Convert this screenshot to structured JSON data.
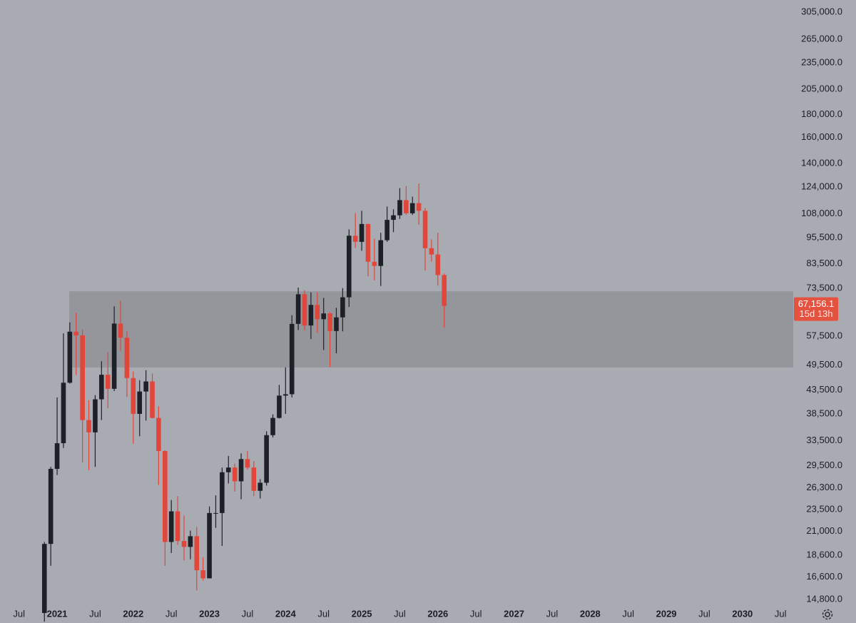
{
  "chart_data": {
    "type": "candlestick",
    "log_scale": true,
    "up_color": "#1e2028",
    "down_color": "#e1463a",
    "background": "#a9abb3",
    "zone": {
      "top": 72400,
      "bottom": 48900,
      "color": "#909298"
    },
    "x": [
      "2020-11",
      "2020-12",
      "2021-01",
      "2021-02",
      "2021-03",
      "2021-04",
      "2021-05",
      "2021-06",
      "2021-07",
      "2021-08",
      "2021-09",
      "2021-10",
      "2021-11",
      "2021-12",
      "2022-01",
      "2022-02",
      "2022-03",
      "2022-04",
      "2022-05",
      "2022-06",
      "2022-07",
      "2022-08",
      "2022-09",
      "2022-10",
      "2022-11",
      "2022-12",
      "2023-01",
      "2023-02",
      "2023-03",
      "2023-04",
      "2023-05",
      "2023-06",
      "2023-07",
      "2023-08",
      "2023-09",
      "2023-10",
      "2023-11",
      "2023-12",
      "2024-01",
      "2024-02",
      "2024-03",
      "2024-04",
      "2024-05",
      "2024-06",
      "2024-07",
      "2024-08",
      "2024-09",
      "2024-10",
      "2024-11",
      "2024-12",
      "2025-01",
      "2025-02",
      "2025-03",
      "2025-04",
      "2025-05",
      "2025-06",
      "2025-07",
      "2025-08",
      "2025-09",
      "2025-10",
      "2025-11",
      "2025-12",
      "2026-01",
      "2026-02"
    ],
    "open": [
      13800,
      19700,
      29000,
      33100,
      45200,
      58800,
      57700,
      37300,
      35000,
      41500,
      47100,
      43800,
      61300,
      57000,
      46300,
      38500,
      43200,
      45500,
      37700,
      31800,
      19900,
      23300,
      20000,
      19400,
      20500,
      17200,
      16500,
      23100,
      23100,
      28500,
      29200,
      27200,
      30500,
      29200,
      25900,
      27000,
      34500,
      37700,
      42300,
      42600,
      61200,
      71300,
      60700,
      67500,
      62700,
      64600,
      59000,
      63300,
      70200,
      96400,
      93400,
      102400,
      84300,
      82500,
      94200,
      104600,
      107100,
      115800,
      108200,
      114000,
      109600,
      90400,
      87500,
      78700
    ],
    "high": [
      19900,
      29300,
      41900,
      58300,
      61700,
      64800,
      59500,
      41300,
      42400,
      50500,
      52900,
      67000,
      69000,
      59000,
      47900,
      45800,
      48200,
      47400,
      40000,
      31900,
      24700,
      25200,
      22800,
      21100,
      21500,
      18400,
      23900,
      25300,
      29200,
      31000,
      29800,
      31400,
      31800,
      30200,
      27500,
      35200,
      38400,
      44700,
      48900,
      64000,
      73800,
      72800,
      72000,
      72000,
      70000,
      65000,
      66500,
      73600,
      99600,
      108300,
      109600,
      102500,
      95000,
      97900,
      112000,
      110500,
      123200,
      124500,
      117900,
      126200,
      111200,
      94600,
      97900,
      79300
    ],
    "low": [
      13200,
      17600,
      28100,
      32300,
      45000,
      47000,
      30000,
      28800,
      29300,
      37300,
      39600,
      43300,
      53300,
      42000,
      33000,
      34300,
      37200,
      37600,
      26700,
      17600,
      18800,
      19600,
      18100,
      18200,
      15500,
      16300,
      16500,
      21400,
      19500,
      26900,
      25800,
      24800,
      28900,
      25200,
      24900,
      26600,
      34100,
      37600,
      38500,
      41900,
      59300,
      59200,
      56600,
      58400,
      53500,
      49000,
      52600,
      58900,
      66800,
      90500,
      89200,
      78200,
      76600,
      74400,
      93400,
      98200,
      105100,
      107300,
      107300,
      102000,
      80600,
      84400,
      74500,
      60000
    ],
    "close": [
      19700,
      29000,
      33100,
      45200,
      58800,
      57700,
      37300,
      35000,
      41500,
      47100,
      43800,
      61300,
      57000,
      46300,
      38500,
      43200,
      45500,
      37700,
      31800,
      19900,
      23300,
      20000,
      19400,
      20500,
      17200,
      16500,
      23100,
      23100,
      28500,
      29200,
      27200,
      30500,
      29200,
      25900,
      27000,
      34500,
      37700,
      42300,
      42600,
      61200,
      71300,
      60700,
      67500,
      62700,
      64600,
      59000,
      63300,
      70200,
      96400,
      93400,
      102400,
      84300,
      82500,
      94200,
      104600,
      107100,
      115800,
      108200,
      114000,
      109600,
      90400,
      87500,
      78700,
      67156.1
    ],
    "last_price_label": "67,156.1",
    "countdown": "15d 13h",
    "ylim": [
      14370,
      324700
    ],
    "yticks": [
      {
        "value": 305000,
        "label": "305,000.0"
      },
      {
        "value": 265000,
        "label": "265,000.0"
      },
      {
        "value": 235000,
        "label": "235,000.0"
      },
      {
        "value": 205000,
        "label": "205,000.0"
      },
      {
        "value": 180000,
        "label": "180,000.0"
      },
      {
        "value": 160000,
        "label": "160,000.0"
      },
      {
        "value": 140000,
        "label": "140,000.0"
      },
      {
        "value": 124000,
        "label": "124,000.0"
      },
      {
        "value": 108000,
        "label": "108,000.0"
      },
      {
        "value": 95500,
        "label": "95,500.0"
      },
      {
        "value": 83500,
        "label": "83,500.0"
      },
      {
        "value": 73500,
        "label": "73,500.0"
      },
      {
        "value": 57500,
        "label": "57,500.0"
      },
      {
        "value": 49500,
        "label": "49,500.0"
      },
      {
        "value": 43500,
        "label": "43,500.0"
      },
      {
        "value": 38500,
        "label": "38,500.0"
      },
      {
        "value": 33500,
        "label": "33,500.0"
      },
      {
        "value": 29500,
        "label": "29,500.0"
      },
      {
        "value": 26300,
        "label": "26,300.0"
      },
      {
        "value": 23500,
        "label": "23,500.0"
      },
      {
        "value": 21000,
        "label": "21,000.0"
      },
      {
        "value": 18600,
        "label": "18,600.0"
      },
      {
        "value": 16600,
        "label": "16,600.0"
      },
      {
        "value": 14800,
        "label": "14,800.0"
      }
    ],
    "xlim": [
      "2020-04",
      "2030-09"
    ],
    "xticks": [
      {
        "value": "2020-07",
        "label": "Jul"
      },
      {
        "value": "2021-01",
        "label": "2021"
      },
      {
        "value": "2021-07",
        "label": "Jul"
      },
      {
        "value": "2022-01",
        "label": "2022"
      },
      {
        "value": "2022-07",
        "label": "Jul"
      },
      {
        "value": "2023-01",
        "label": "2023"
      },
      {
        "value": "2023-07",
        "label": "Jul"
      },
      {
        "value": "2024-01",
        "label": "2024"
      },
      {
        "value": "2024-07",
        "label": "Jul"
      },
      {
        "value": "2025-01",
        "label": "2025"
      },
      {
        "value": "2025-07",
        "label": "Jul"
      },
      {
        "value": "2026-01",
        "label": "2026"
      },
      {
        "value": "2026-07",
        "label": "Jul"
      },
      {
        "value": "2027-01",
        "label": "2027"
      },
      {
        "value": "2027-07",
        "label": "Jul"
      },
      {
        "value": "2028-01",
        "label": "2028"
      },
      {
        "value": "2028-07",
        "label": "Jul"
      },
      {
        "value": "2029-01",
        "label": "2029"
      },
      {
        "value": "2029-07",
        "label": "Jul"
      },
      {
        "value": "2030-01",
        "label": "2030"
      },
      {
        "value": "2030-07",
        "label": "Jul"
      }
    ]
  }
}
